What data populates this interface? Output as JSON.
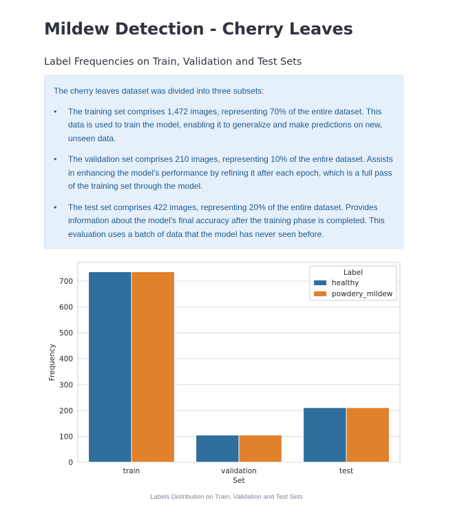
{
  "page": {
    "title": "Mildew Detection - Cherry Leaves",
    "subheader": "Label Frequencies on Train, Validation and Test Sets"
  },
  "info_box": {
    "intro": "The cherry leaves dataset was divided into three subsets:",
    "bullets": [
      "The training set comprises 1,472 images, representing 70% of the entire dataset. This data is used to train the model, enabling it to generalize and make predictions on new, unseen data.",
      "The validation set comprises 210 images, representing 10% of the entire dataset. Assists in enhancing the model's performance by refining it after each epoch, which is a full pass of the training set through the model.",
      "The test set comprises 422 images, representing 20% of the entire dataset. Provides information about the model's final accuracy after the training phase is completed. This evaluation uses a batch of data that the model has never seen before."
    ],
    "bullet_glyph": "•"
  },
  "chart_data": {
    "type": "bar",
    "categories": [
      "train",
      "validation",
      "test"
    ],
    "series": [
      {
        "name": "healthy",
        "values": [
          736,
          105,
          211
        ],
        "color": "#2e6f9e"
      },
      {
        "name": "powdery_mildew",
        "values": [
          736,
          105,
          211
        ],
        "color": "#e1812c"
      }
    ],
    "xlabel": "Set",
    "ylabel": "Frequency",
    "ylim": [
      0,
      772
    ],
    "yticks": [
      0,
      100,
      200,
      300,
      400,
      500,
      600,
      700
    ],
    "grid": true,
    "legend": {
      "title": "Label",
      "position": "top-right"
    }
  },
  "caption": "Labels Distribution on Train, Validation and Test Sets"
}
